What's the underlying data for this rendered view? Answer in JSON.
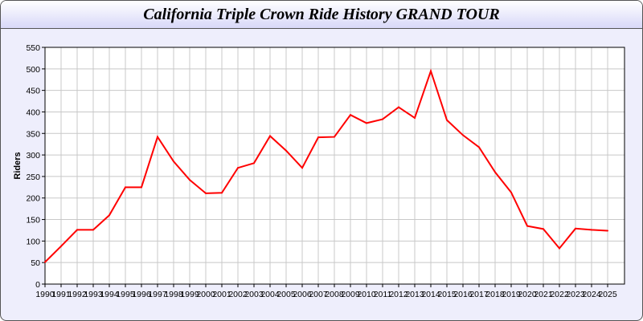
{
  "chart_data": {
    "type": "line",
    "title": "California Triple Crown Ride History GRAND TOUR",
    "xlabel": "",
    "ylabel": "Riders",
    "ylim": [
      0,
      550
    ],
    "yticks": [
      0,
      50,
      100,
      150,
      200,
      250,
      300,
      350,
      400,
      450,
      500,
      550
    ],
    "grid": true,
    "line_color": "#ff0000",
    "x": [
      "1990",
      "1991",
      "1992",
      "1993",
      "1994",
      "1995",
      "1996",
      "1997",
      "1998",
      "1999",
      "2000",
      "2001",
      "2002",
      "2003",
      "2004",
      "2005",
      "2006",
      "2007",
      "2008",
      "2009",
      "2010",
      "2011",
      "2012",
      "2013",
      "2014",
      "2015",
      "2016",
      "2017",
      "2018",
      "2019",
      "2020",
      "2021",
      "2022",
      "2023",
      "2024",
      "2025"
    ],
    "series": [
      {
        "values": [
          51,
          88,
          126,
          126,
          160,
          225,
          225,
          342,
          285,
          242,
          211,
          212,
          270,
          281,
          344,
          310,
          270,
          341,
          342,
          393,
          374,
          383,
          411,
          386,
          495,
          381,
          346,
          318,
          260,
          213,
          135,
          128,
          83,
          129,
          126,
          124
        ]
      }
    ]
  }
}
